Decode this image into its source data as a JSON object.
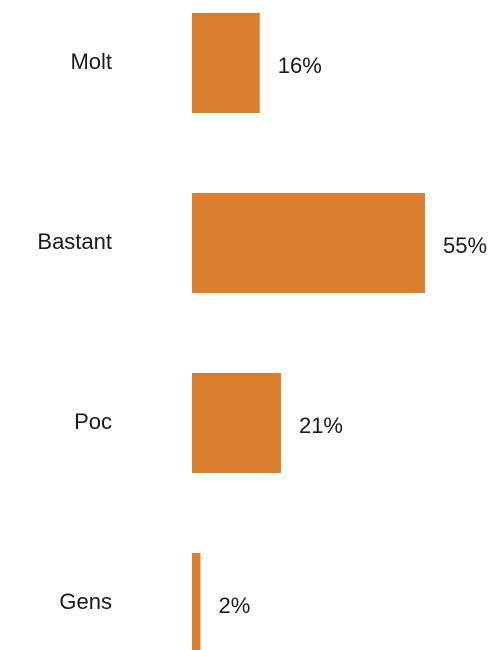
{
  "chart_data": {
    "type": "bar",
    "orientation": "horizontal",
    "categories": [
      "Molt",
      "Bastant",
      "Poc",
      "Gens"
    ],
    "values": [
      16,
      55,
      21,
      2
    ],
    "value_labels": [
      "16%",
      "55%",
      "21%",
      "2%"
    ],
    "unit": "%",
    "xlim": [
      0,
      55
    ],
    "grid": false,
    "legend": "none",
    "colors": {
      "bar": "#D97E2C",
      "text": "#1a1a1a",
      "background": "#ffffff"
    }
  }
}
